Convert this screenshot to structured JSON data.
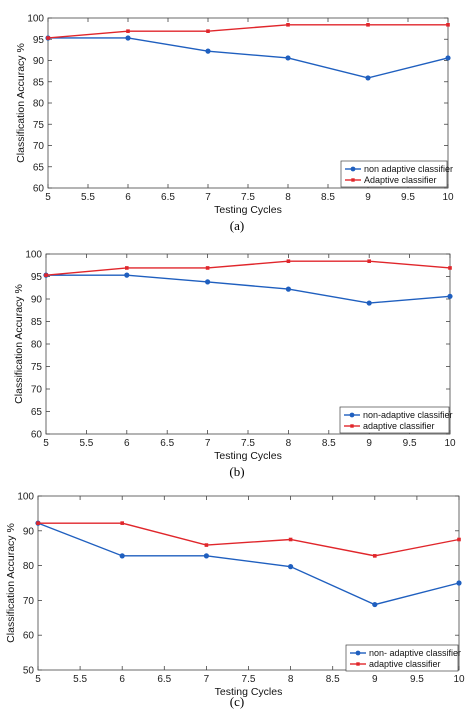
{
  "chart_data": [
    {
      "type": "line",
      "caption": "(a)",
      "xlabel": "Testing Cycles",
      "ylabel": "Classification Accuracy %",
      "x": [
        5,
        6,
        7,
        8,
        9,
        10
      ],
      "xlim": [
        5,
        10
      ],
      "ylim": [
        60,
        100
      ],
      "xticks": [
        "5",
        "5.5",
        "6",
        "6.5",
        "7",
        "7.5",
        "8",
        "8.5",
        "9",
        "9.5",
        "10"
      ],
      "yticks": [
        "60",
        "65",
        "70",
        "75",
        "80",
        "85",
        "90",
        "95",
        "100"
      ],
      "grid": false,
      "legend_position": "bottom-right",
      "series": [
        {
          "name": "non adaptive classifier",
          "color": "#1f5fbf",
          "marker": "circle",
          "values": [
            95.3,
            95.3,
            92.2,
            90.6,
            85.9,
            90.6
          ]
        },
        {
          "name": "Adaptive classifier",
          "color": "#e0262b",
          "marker": "square",
          "values": [
            95.3,
            96.9,
            96.9,
            98.4,
            98.4,
            98.4
          ]
        }
      ]
    },
    {
      "type": "line",
      "caption": "(b)",
      "xlabel": "Testing Cycles",
      "ylabel": "Classification Accuracy %",
      "x": [
        5,
        6,
        7,
        8,
        9,
        10
      ],
      "xlim": [
        5,
        10
      ],
      "ylim": [
        60,
        100
      ],
      "xticks": [
        "5",
        "5.5",
        "6",
        "6.5",
        "7",
        "7.5",
        "8",
        "8.5",
        "9",
        "9.5",
        "10"
      ],
      "yticks": [
        "60",
        "65",
        "70",
        "75",
        "80",
        "85",
        "90",
        "95",
        "100"
      ],
      "grid": false,
      "legend_position": "bottom-right",
      "series": [
        {
          "name": "non-adaptive classifier",
          "color": "#1f5fbf",
          "marker": "circle",
          "values": [
            95.3,
            95.3,
            93.8,
            92.2,
            89.1,
            90.6
          ]
        },
        {
          "name": "adaptive classifier",
          "color": "#e0262b",
          "marker": "square",
          "values": [
            95.3,
            96.9,
            96.9,
            98.4,
            98.4,
            96.9
          ]
        }
      ]
    },
    {
      "type": "line",
      "caption": "(c)",
      "xlabel": "Testing Cycles",
      "ylabel": "Classification Accuracy %",
      "x": [
        5,
        6,
        7,
        8,
        9,
        10
      ],
      "xlim": [
        5,
        10
      ],
      "ylim": [
        50,
        100
      ],
      "xticks": [
        "5",
        "5.5",
        "6",
        "6.5",
        "7",
        "7.5",
        "8",
        "8.5",
        "9",
        "9.5",
        "10"
      ],
      "yticks": [
        "50",
        "60",
        "70",
        "80",
        "90",
        "100"
      ],
      "grid": false,
      "legend_position": "bottom-right",
      "series": [
        {
          "name": "non- adaptive classifier",
          "color": "#1f5fbf",
          "marker": "circle",
          "values": [
            92.2,
            82.8,
            82.8,
            79.7,
            68.8,
            75.0
          ]
        },
        {
          "name": "adaptive classifier",
          "color": "#e0262b",
          "marker": "square",
          "values": [
            92.2,
            92.2,
            85.9,
            87.5,
            82.8,
            87.5
          ]
        }
      ]
    }
  ]
}
